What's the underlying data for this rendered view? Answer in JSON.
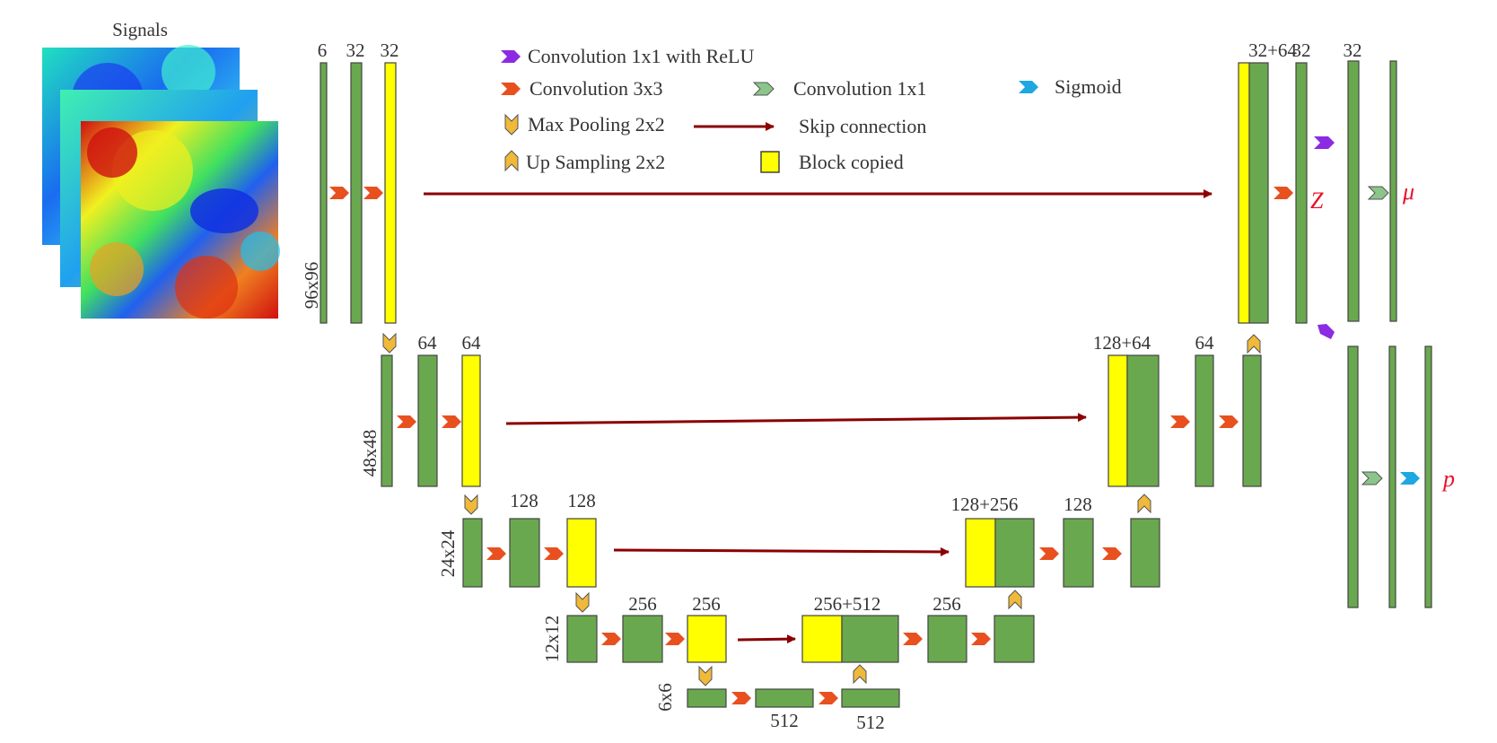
{
  "signals": {
    "title": "Signals"
  },
  "legend": {
    "conv1x1_relu": "Convolution 1x1 with ReLU",
    "conv3x3": "Convolution 3x3",
    "conv1x1": "Convolution 1x1",
    "sigmoid": "Sigmoid",
    "maxpool": "Max Pooling 2x2",
    "skip": "Skip connection",
    "upsample": "Up Sampling 2x2",
    "copied": "Block copied"
  },
  "resolutions": {
    "r96": "96x96",
    "r48": "48x48",
    "r24": "24x24",
    "r12": "12x12",
    "r6": "6x6"
  },
  "channels": {
    "c6": "6",
    "c32": "32",
    "c64": "64",
    "c128": "128",
    "c256": "256",
    "c512": "512",
    "c32p64": "32+64",
    "c128p64": "128+64",
    "c128p256": "128+256",
    "c256p512": "256+512"
  },
  "outputs": {
    "z": "Z",
    "mu": "μ",
    "p": "p"
  },
  "colors": {
    "block_green": "#6aa84f",
    "block_yellow": "#ffff00",
    "conv3x3": "#e8501f",
    "conv1x1": "#8cc58a",
    "conv1x1_relu": "#8b2be2",
    "sigmoid": "#1ea7e1",
    "pool": "#f0b93a",
    "skip": "#8b0000",
    "output_label": "#e8102a"
  }
}
